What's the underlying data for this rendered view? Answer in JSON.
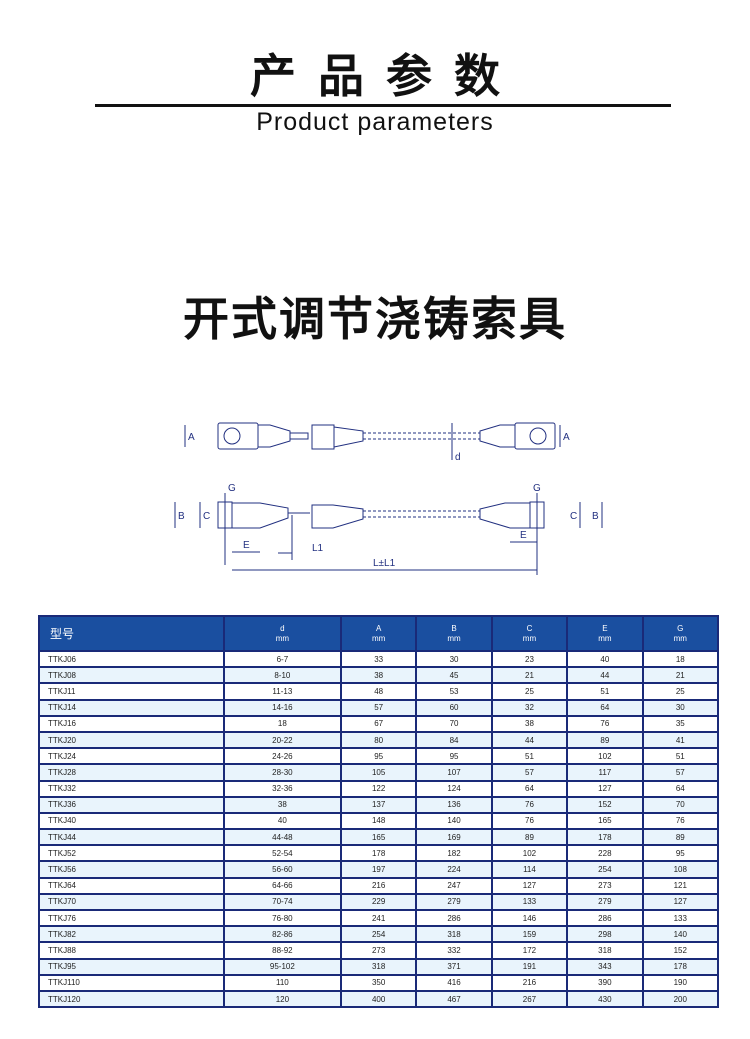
{
  "header": {
    "title_cn": "产品参数",
    "title_en": "Product parameters"
  },
  "product": {
    "name": "开式调节浇铸索具"
  },
  "diagram": {
    "labels": {
      "a_left": "A",
      "a_right": "A",
      "d": "d",
      "g_left": "G",
      "g_right": "G",
      "b_left": "B",
      "c_left": "C",
      "c_right": "C",
      "b_right": "B",
      "e_left": "E",
      "e_right": "E",
      "l1": "L1",
      "total": "L±L1"
    }
  },
  "table": {
    "headers": [
      {
        "name": "型号",
        "unit": ""
      },
      {
        "name": "d",
        "unit": "mm"
      },
      {
        "name": "A",
        "unit": "mm"
      },
      {
        "name": "B",
        "unit": "mm"
      },
      {
        "name": "C",
        "unit": "mm"
      },
      {
        "name": "E",
        "unit": "mm"
      },
      {
        "name": "G",
        "unit": "mm"
      }
    ],
    "rows": [
      [
        "TTKJ06",
        "6-7",
        "33",
        "30",
        "23",
        "40",
        "18"
      ],
      [
        "TTKJ08",
        "8-10",
        "38",
        "45",
        "21",
        "44",
        "21"
      ],
      [
        "TTKJ11",
        "11-13",
        "48",
        "53",
        "25",
        "51",
        "25"
      ],
      [
        "TTKJ14",
        "14-16",
        "57",
        "60",
        "32",
        "64",
        "30"
      ],
      [
        "TTKJ16",
        "18",
        "67",
        "70",
        "38",
        "76",
        "35"
      ],
      [
        "TTKJ20",
        "20-22",
        "80",
        "84",
        "44",
        "89",
        "41"
      ],
      [
        "TTKJ24",
        "24-26",
        "95",
        "95",
        "51",
        "102",
        "51"
      ],
      [
        "TTKJ28",
        "28-30",
        "105",
        "107",
        "57",
        "117",
        "57"
      ],
      [
        "TTKJ32",
        "32-36",
        "122",
        "124",
        "64",
        "127",
        "64"
      ],
      [
        "TTKJ36",
        "38",
        "137",
        "136",
        "76",
        "152",
        "70"
      ],
      [
        "TTKJ40",
        "40",
        "148",
        "140",
        "76",
        "165",
        "76"
      ],
      [
        "TTKJ44",
        "44-48",
        "165",
        "169",
        "89",
        "178",
        "89"
      ],
      [
        "TTKJ52",
        "52-54",
        "178",
        "182",
        "102",
        "228",
        "95"
      ],
      [
        "TTKJ56",
        "56-60",
        "197",
        "224",
        "114",
        "254",
        "108"
      ],
      [
        "TTKJ64",
        "64-66",
        "216",
        "247",
        "127",
        "273",
        "121"
      ],
      [
        "TTKJ70",
        "70-74",
        "229",
        "279",
        "133",
        "279",
        "127"
      ],
      [
        "TTKJ76",
        "76-80",
        "241",
        "286",
        "146",
        "286",
        "133"
      ],
      [
        "TTKJ82",
        "82-86",
        "254",
        "318",
        "159",
        "298",
        "140"
      ],
      [
        "TTKJ88",
        "88-92",
        "273",
        "332",
        "172",
        "318",
        "152"
      ],
      [
        "TTKJ95",
        "95-102",
        "318",
        "371",
        "191",
        "343",
        "178"
      ],
      [
        "TTKJ110",
        "110",
        "350",
        "416",
        "216",
        "390",
        "190"
      ],
      [
        "TTKJ120",
        "120",
        "400",
        "467",
        "267",
        "430",
        "200"
      ]
    ]
  }
}
